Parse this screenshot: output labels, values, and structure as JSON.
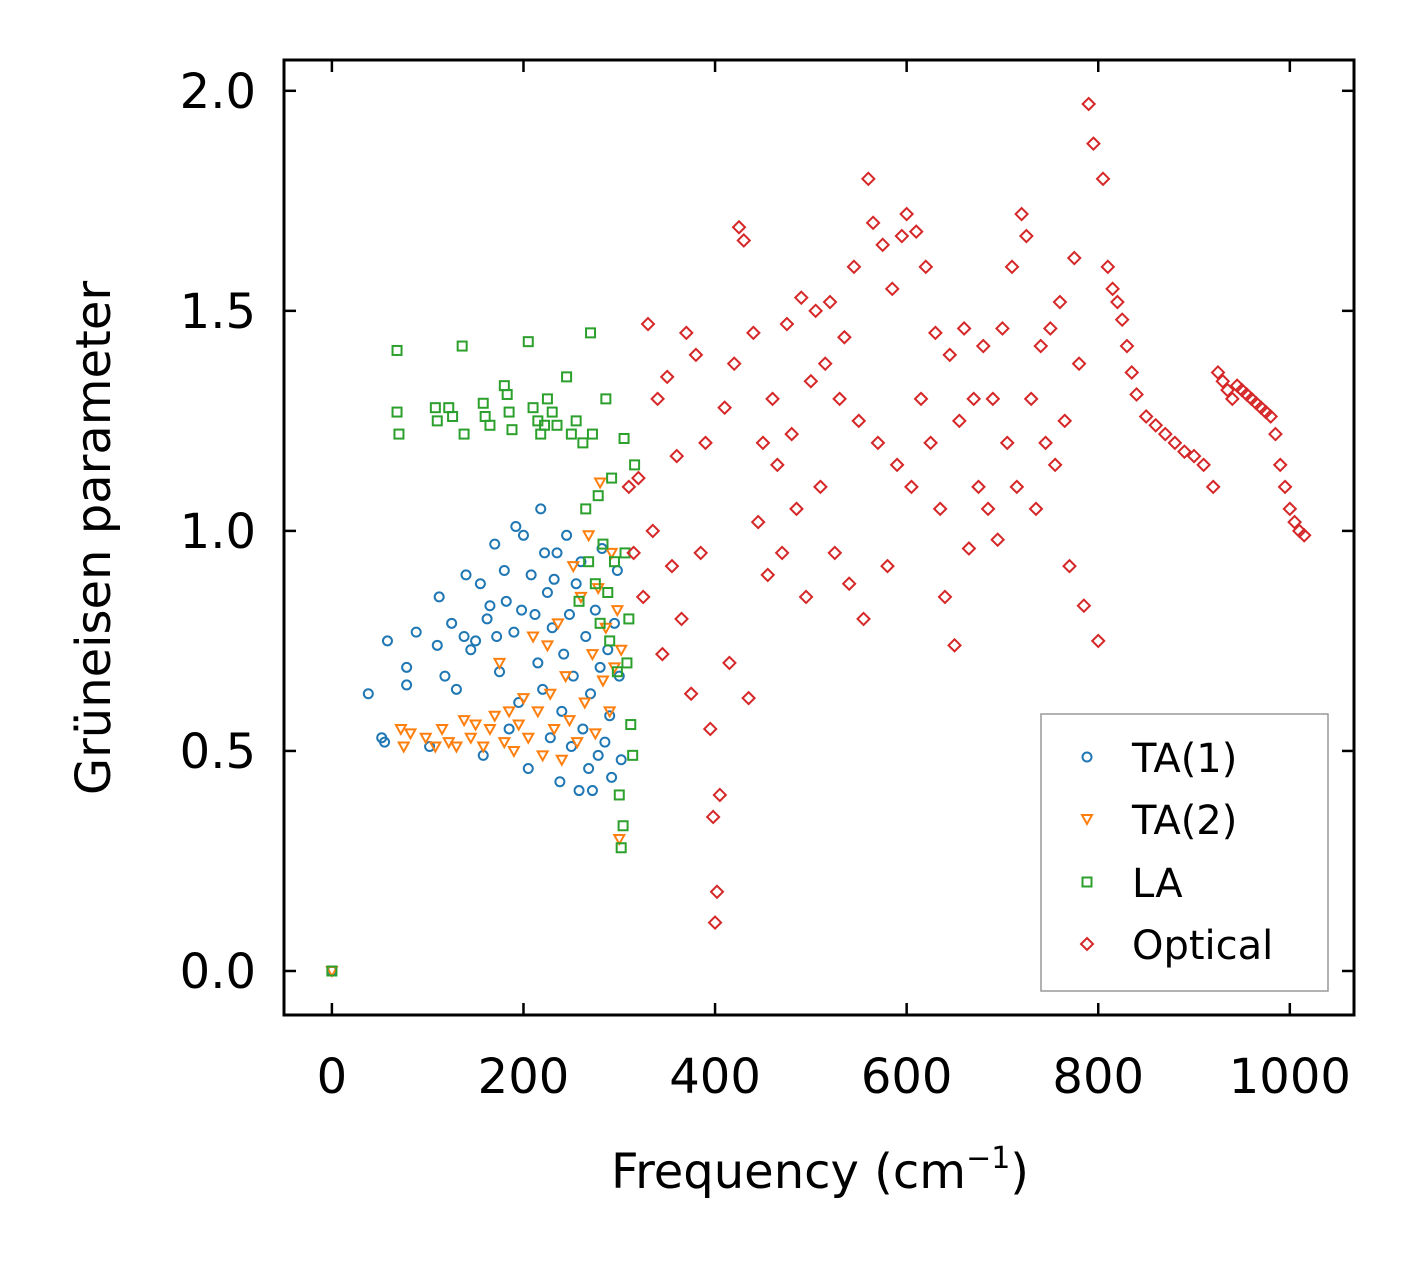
{
  "chart_data": {
    "type": "scatter",
    "title": "",
    "xlabel": "Frequency (cm",
    "xlabel_sup": "−1",
    "xlabel_close": ")",
    "ylabel": "Grüneisen parameter",
    "xlim": [
      -50,
      1067
    ],
    "ylim": [
      -0.1,
      2.07
    ],
    "xticks": [
      0,
      200,
      400,
      600,
      800,
      1000
    ],
    "xtick_labels": [
      "0",
      "200",
      "400",
      "600",
      "800",
      "1000"
    ],
    "yticks": [
      0.0,
      0.5,
      1.0,
      1.5,
      2.0
    ],
    "ytick_labels": [
      "0.0",
      "0.5",
      "1.0",
      "1.5",
      "2.0"
    ],
    "grid": false,
    "legend_position": "bottom-right",
    "series": [
      {
        "name": "TA(1)",
        "marker": "circle",
        "color": "#1f77b4",
        "points": [
          [
            0,
            0
          ],
          [
            38,
            0.63
          ],
          [
            52,
            0.53
          ],
          [
            55,
            0.52
          ],
          [
            58,
            0.75
          ],
          [
            78,
            0.69
          ],
          [
            78,
            0.65
          ],
          [
            88,
            0.77
          ],
          [
            102,
            0.51
          ],
          [
            110,
            0.74
          ],
          [
            112,
            0.85
          ],
          [
            118,
            0.67
          ],
          [
            125,
            0.79
          ],
          [
            130,
            0.64
          ],
          [
            138,
            0.76
          ],
          [
            140,
            0.9
          ],
          [
            145,
            0.73
          ],
          [
            150,
            0.75
          ],
          [
            155,
            0.88
          ],
          [
            158,
            0.49
          ],
          [
            162,
            0.8
          ],
          [
            165,
            0.83
          ],
          [
            170,
            0.97
          ],
          [
            172,
            0.76
          ],
          [
            175,
            0.68
          ],
          [
            180,
            0.91
          ],
          [
            182,
            0.84
          ],
          [
            185,
            0.55
          ],
          [
            190,
            0.77
          ],
          [
            192,
            1.01
          ],
          [
            195,
            0.61
          ],
          [
            198,
            0.82
          ],
          [
            200,
            0.99
          ],
          [
            205,
            0.46
          ],
          [
            208,
            0.9
          ],
          [
            212,
            0.81
          ],
          [
            215,
            0.7
          ],
          [
            218,
            1.05
          ],
          [
            220,
            0.64
          ],
          [
            222,
            0.95
          ],
          [
            225,
            0.86
          ],
          [
            228,
            0.53
          ],
          [
            230,
            0.78
          ],
          [
            232,
            0.89
          ],
          [
            235,
            0.95
          ],
          [
            238,
            0.43
          ],
          [
            240,
            0.59
          ],
          [
            242,
            0.72
          ],
          [
            245,
            0.99
          ],
          [
            248,
            0.81
          ],
          [
            250,
            0.51
          ],
          [
            252,
            0.67
          ],
          [
            255,
            0.88
          ],
          [
            258,
            0.41
          ],
          [
            260,
            0.93
          ],
          [
            262,
            0.55
          ],
          [
            265,
            0.76
          ],
          [
            268,
            0.46
          ],
          [
            270,
            0.63
          ],
          [
            272,
            0.41
          ],
          [
            275,
            0.82
          ],
          [
            278,
            0.49
          ],
          [
            280,
            0.69
          ],
          [
            282,
            0.96
          ],
          [
            285,
            0.52
          ],
          [
            288,
            0.73
          ],
          [
            290,
            0.58
          ],
          [
            292,
            0.44
          ],
          [
            295,
            0.79
          ],
          [
            298,
            0.91
          ],
          [
            300,
            0.67
          ],
          [
            302,
            0.48
          ]
        ]
      },
      {
        "name": "TA(2)",
        "marker": "triangle-down",
        "color": "#ff7f0e",
        "points": [
          [
            0,
            0
          ],
          [
            72,
            0.55
          ],
          [
            75,
            0.51
          ],
          [
            82,
            0.54
          ],
          [
            98,
            0.53
          ],
          [
            108,
            0.51
          ],
          [
            115,
            0.55
          ],
          [
            122,
            0.52
          ],
          [
            130,
            0.51
          ],
          [
            138,
            0.57
          ],
          [
            145,
            0.53
          ],
          [
            150,
            0.56
          ],
          [
            158,
            0.51
          ],
          [
            165,
            0.55
          ],
          [
            170,
            0.58
          ],
          [
            175,
            0.7
          ],
          [
            180,
            0.52
          ],
          [
            185,
            0.59
          ],
          [
            190,
            0.5
          ],
          [
            195,
            0.56
          ],
          [
            200,
            0.62
          ],
          [
            205,
            0.53
          ],
          [
            210,
            0.76
          ],
          [
            215,
            0.59
          ],
          [
            220,
            0.49
          ],
          [
            225,
            0.74
          ],
          [
            228,
            0.63
          ],
          [
            232,
            0.55
          ],
          [
            236,
            0.79
          ],
          [
            240,
            0.48
          ],
          [
            244,
            0.67
          ],
          [
            248,
            0.57
          ],
          [
            252,
            0.92
          ],
          [
            256,
            0.52
          ],
          [
            260,
            0.85
          ],
          [
            264,
            0.61
          ],
          [
            268,
            0.99
          ],
          [
            272,
            0.72
          ],
          [
            275,
            0.54
          ],
          [
            278,
            0.87
          ],
          [
            280,
            1.11
          ],
          [
            283,
            0.66
          ],
          [
            286,
            0.78
          ],
          [
            290,
            0.59
          ],
          [
            292,
            0.95
          ],
          [
            295,
            0.69
          ],
          [
            298,
            0.82
          ],
          [
            300,
            0.3
          ],
          [
            302,
            0.73
          ]
        ]
      },
      {
        "name": "LA",
        "marker": "square",
        "color": "#2ca02c",
        "points": [
          [
            0,
            0
          ],
          [
            68,
            1.41
          ],
          [
            68,
            1.27
          ],
          [
            70,
            1.22
          ],
          [
            108,
            1.28
          ],
          [
            110,
            1.25
          ],
          [
            122,
            1.28
          ],
          [
            126,
            1.26
          ],
          [
            136,
            1.42
          ],
          [
            138,
            1.22
          ],
          [
            158,
            1.29
          ],
          [
            160,
            1.26
          ],
          [
            165,
            1.24
          ],
          [
            180,
            1.33
          ],
          [
            183,
            1.31
          ],
          [
            185,
            1.27
          ],
          [
            188,
            1.23
          ],
          [
            205,
            1.43
          ],
          [
            210,
            1.28
          ],
          [
            215,
            1.25
          ],
          [
            218,
            1.22
          ],
          [
            222,
            1.24
          ],
          [
            225,
            1.3
          ],
          [
            230,
            1.27
          ],
          [
            235,
            1.24
          ],
          [
            245,
            1.35
          ],
          [
            250,
            1.22
          ],
          [
            255,
            1.25
          ],
          [
            258,
            0.84
          ],
          [
            262,
            1.2
          ],
          [
            265,
            1.05
          ],
          [
            268,
            0.93
          ],
          [
            270,
            1.45
          ],
          [
            272,
            1.22
          ],
          [
            275,
            0.88
          ],
          [
            278,
            1.08
          ],
          [
            280,
            0.79
          ],
          [
            283,
            0.97
          ],
          [
            286,
            1.3
          ],
          [
            288,
            0.86
          ],
          [
            290,
            0.75
          ],
          [
            292,
            1.12
          ],
          [
            295,
            0.93
          ],
          [
            298,
            0.68
          ],
          [
            300,
            0.4
          ],
          [
            302,
            0.28
          ],
          [
            304,
            0.33
          ],
          [
            305,
            1.21
          ],
          [
            306,
            0.95
          ],
          [
            308,
            0.7
          ],
          [
            310,
            0.8
          ],
          [
            312,
            0.56
          ],
          [
            314,
            0.49
          ],
          [
            316,
            1.15
          ]
        ]
      },
      {
        "name": "Optical",
        "marker": "diamond",
        "color": "#d62728",
        "points": [
          [
            310,
            1.1
          ],
          [
            315,
            0.95
          ],
          [
            320,
            1.12
          ],
          [
            325,
            0.85
          ],
          [
            330,
            1.47
          ],
          [
            335,
            1.0
          ],
          [
            340,
            1.3
          ],
          [
            345,
            0.72
          ],
          [
            350,
            1.35
          ],
          [
            355,
            0.92
          ],
          [
            360,
            1.17
          ],
          [
            365,
            0.8
          ],
          [
            370,
            1.45
          ],
          [
            375,
            0.63
          ],
          [
            380,
            1.4
          ],
          [
            385,
            0.95
          ],
          [
            390,
            1.2
          ],
          [
            395,
            0.55
          ],
          [
            398,
            0.35
          ],
          [
            400,
            0.11
          ],
          [
            402,
            0.18
          ],
          [
            405,
            0.4
          ],
          [
            410,
            1.28
          ],
          [
            415,
            0.7
          ],
          [
            420,
            1.38
          ],
          [
            425,
            1.69
          ],
          [
            430,
            1.66
          ],
          [
            435,
            0.62
          ],
          [
            440,
            1.45
          ],
          [
            445,
            1.02
          ],
          [
            450,
            1.2
          ],
          [
            455,
            0.9
          ],
          [
            460,
            1.3
          ],
          [
            465,
            1.15
          ],
          [
            470,
            0.95
          ],
          [
            475,
            1.47
          ],
          [
            480,
            1.22
          ],
          [
            485,
            1.05
          ],
          [
            490,
            1.53
          ],
          [
            495,
            0.85
          ],
          [
            500,
            1.34
          ],
          [
            505,
            1.5
          ],
          [
            510,
            1.1
          ],
          [
            515,
            1.38
          ],
          [
            520,
            1.52
          ],
          [
            525,
            0.95
          ],
          [
            530,
            1.3
          ],
          [
            535,
            1.44
          ],
          [
            540,
            0.88
          ],
          [
            545,
            1.6
          ],
          [
            550,
            1.25
          ],
          [
            555,
            0.8
          ],
          [
            560,
            1.8
          ],
          [
            565,
            1.7
          ],
          [
            570,
            1.2
          ],
          [
            575,
            1.65
          ],
          [
            580,
            0.92
          ],
          [
            585,
            1.55
          ],
          [
            590,
            1.15
          ],
          [
            595,
            1.67
          ],
          [
            600,
            1.72
          ],
          [
            605,
            1.1
          ],
          [
            610,
            1.68
          ],
          [
            615,
            1.3
          ],
          [
            620,
            1.6
          ],
          [
            625,
            1.2
          ],
          [
            630,
            1.45
          ],
          [
            635,
            1.05
          ],
          [
            640,
            0.85
          ],
          [
            645,
            1.4
          ],
          [
            650,
            0.74
          ],
          [
            655,
            1.25
          ],
          [
            660,
            1.46
          ],
          [
            665,
            0.96
          ],
          [
            670,
            1.3
          ],
          [
            675,
            1.1
          ],
          [
            680,
            1.42
          ],
          [
            685,
            1.05
          ],
          [
            690,
            1.3
          ],
          [
            695,
            0.98
          ],
          [
            700,
            1.46
          ],
          [
            705,
            1.2
          ],
          [
            710,
            1.6
          ],
          [
            715,
            1.1
          ],
          [
            720,
            1.72
          ],
          [
            725,
            1.67
          ],
          [
            730,
            1.3
          ],
          [
            735,
            1.05
          ],
          [
            740,
            1.42
          ],
          [
            745,
            1.2
          ],
          [
            750,
            1.46
          ],
          [
            755,
            1.15
          ],
          [
            760,
            1.52
          ],
          [
            765,
            1.25
          ],
          [
            770,
            0.92
          ],
          [
            775,
            1.62
          ],
          [
            780,
            1.38
          ],
          [
            785,
            0.83
          ],
          [
            790,
            1.97
          ],
          [
            795,
            1.88
          ],
          [
            800,
            0.75
          ],
          [
            805,
            1.8
          ],
          [
            810,
            1.6
          ],
          [
            815,
            1.55
          ],
          [
            820,
            1.52
          ],
          [
            825,
            1.48
          ],
          [
            830,
            1.42
          ],
          [
            835,
            1.36
          ],
          [
            840,
            1.31
          ],
          [
            850,
            1.26
          ],
          [
            860,
            1.24
          ],
          [
            870,
            1.22
          ],
          [
            880,
            1.2
          ],
          [
            890,
            1.18
          ],
          [
            900,
            1.17
          ],
          [
            910,
            1.15
          ],
          [
            920,
            1.1
          ],
          [
            925,
            1.36
          ],
          [
            930,
            1.34
          ],
          [
            935,
            1.32
          ],
          [
            940,
            1.3
          ],
          [
            945,
            1.33
          ],
          [
            950,
            1.32
          ],
          [
            955,
            1.31
          ],
          [
            960,
            1.3
          ],
          [
            965,
            1.29
          ],
          [
            970,
            1.28
          ],
          [
            975,
            1.27
          ],
          [
            980,
            1.26
          ],
          [
            985,
            1.22
          ],
          [
            990,
            1.15
          ],
          [
            995,
            1.1
          ],
          [
            1000,
            1.05
          ],
          [
            1005,
            1.02
          ],
          [
            1010,
            1.0
          ],
          [
            1015,
            0.99
          ]
        ]
      }
    ]
  }
}
